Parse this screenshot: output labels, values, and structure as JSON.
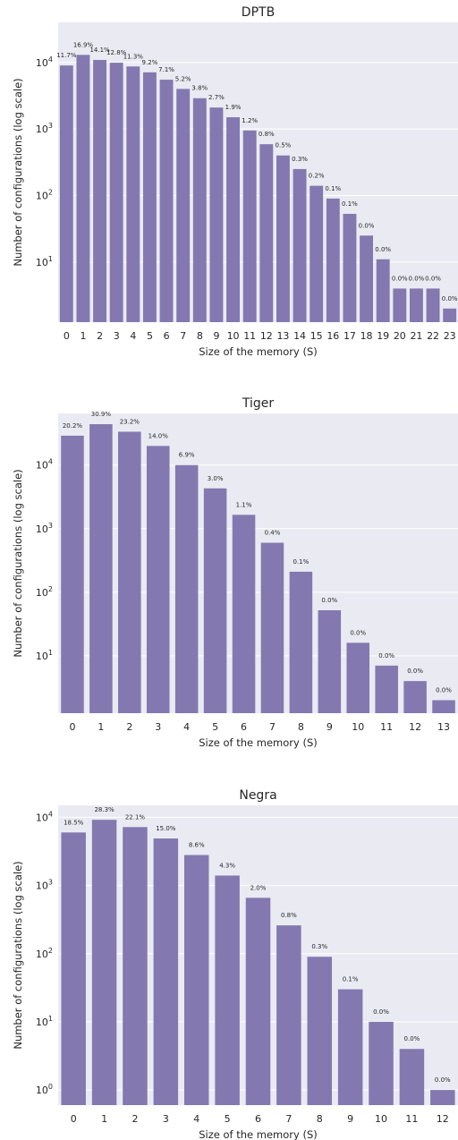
{
  "chart_data": [
    {
      "type": "bar",
      "title": "DPTB",
      "xlabel": "Size of the memory (S)",
      "ylabel": "Number of configurations (log scale)",
      "yscale": "log",
      "ylim": [
        1.25,
        40000
      ],
      "yticks": [
        10,
        100,
        1000,
        10000
      ],
      "grid": true,
      "categories": [
        "0",
        "1",
        "2",
        "3",
        "4",
        "5",
        "6",
        "7",
        "8",
        "9",
        "10",
        "11",
        "12",
        "13",
        "14",
        "15",
        "16",
        "17",
        "18",
        "19",
        "20",
        "21",
        "22",
        "23"
      ],
      "values": [
        9000,
        13000,
        10900,
        9900,
        8700,
        7100,
        5500,
        4000,
        2900,
        2100,
        1500,
        950,
        590,
        400,
        250,
        140,
        90,
        53,
        25,
        11,
        4,
        4,
        4,
        2
      ],
      "labels": [
        "11.7%",
        "16.9%",
        "14.1%",
        "12.8%",
        "11.3%",
        "9.2%",
        "7.1%",
        "5.2%",
        "3.8%",
        "2.7%",
        "1.9%",
        "1.2%",
        "0.8%",
        "0.5%",
        "0.3%",
        "0.2%",
        "0.1%",
        "0.1%",
        "0.0%",
        "0.0%",
        "0.0%",
        "0.0%",
        "0.0%",
        "0.0%"
      ]
    },
    {
      "type": "bar",
      "title": "Tiger",
      "xlabel": "Size of the memory (S)",
      "ylabel": "Number of configurations (log scale)",
      "yscale": "log",
      "ylim": [
        1.25,
        65000
      ],
      "yticks": [
        10,
        100,
        1000,
        10000
      ],
      "grid": true,
      "categories": [
        "0",
        "1",
        "2",
        "3",
        "4",
        "5",
        "6",
        "7",
        "8",
        "9",
        "10",
        "11",
        "12",
        "13"
      ],
      "values": [
        29000,
        44000,
        33500,
        20000,
        10000,
        4300,
        1650,
        600,
        210,
        52,
        16,
        7,
        4,
        2
      ],
      "labels": [
        "20.2%",
        "30.9%",
        "23.2%",
        "14.0%",
        "6.9%",
        "3.0%",
        "1.1%",
        "0.4%",
        "0.1%",
        "0.0%",
        "0.0%",
        "0.0%",
        "0.0%",
        "0.0%"
      ]
    },
    {
      "type": "bar",
      "title": "Negra",
      "xlabel": "Size of the memory (S)",
      "ylabel": "Number of configurations (log scale)",
      "yscale": "log",
      "ylim": [
        0.6,
        15000
      ],
      "yticks": [
        1,
        10,
        100,
        1000,
        10000
      ],
      "grid": true,
      "categories": [
        "0",
        "1",
        "2",
        "3",
        "4",
        "5",
        "6",
        "7",
        "8",
        "9",
        "10",
        "11",
        "12"
      ],
      "values": [
        6000,
        9200,
        7200,
        4900,
        2800,
        1400,
        660,
        260,
        90,
        30,
        10,
        4,
        1
      ],
      "labels": [
        "18.5%",
        "28.3%",
        "22.1%",
        "15.0%",
        "8.6%",
        "4.3%",
        "2.0%",
        "0.8%",
        "0.3%",
        "0.1%",
        "0.0%",
        "0.0%",
        "0.0%"
      ]
    }
  ]
}
